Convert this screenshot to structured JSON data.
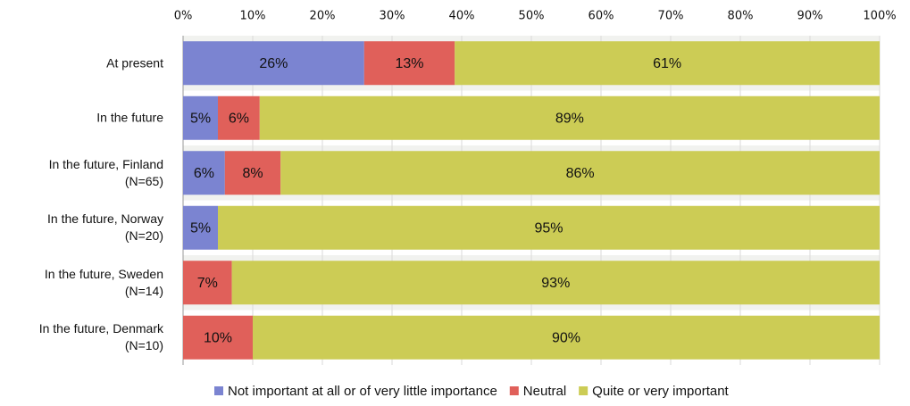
{
  "chart_data": {
    "type": "stacked-barh",
    "categories": [
      "At present",
      "In the future",
      "In the future, Finland\n(N=65)",
      "In the future, Norway\n(N=20)",
      "In the future, Sweden\n(N=14)",
      "In the future, Denmark\n(N=10)"
    ],
    "series": [
      {
        "name": "Not important at all or of very little importance",
        "color": "#7b84d1",
        "values": [
          26,
          5,
          6,
          5,
          null,
          null
        ],
        "value_labels": [
          "26%",
          "5%",
          "6%",
          "5%",
          null,
          null
        ]
      },
      {
        "name": "Neutral",
        "color": "#e0605a",
        "values": [
          13,
          6,
          8,
          null,
          7,
          10
        ],
        "value_labels": [
          "13%",
          "6%",
          "8%",
          null,
          "7%",
          "10%"
        ]
      },
      {
        "name": "Quite or very important",
        "color": "#cccc55",
        "values": [
          61,
          89,
          86,
          95,
          93,
          90
        ],
        "value_labels": [
          "61%",
          "89%",
          "86%",
          "95%",
          "93%",
          "90%"
        ]
      }
    ],
    "xlim": [
      0,
      100
    ],
    "xticks": [
      {
        "value": 0,
        "label": "0%"
      },
      {
        "value": 10,
        "label": "10%"
      },
      {
        "value": 20,
        "label": "20%"
      },
      {
        "value": 30,
        "label": "30%"
      },
      {
        "value": 40,
        "label": "40%"
      },
      {
        "value": 50,
        "label": "50%"
      },
      {
        "value": 60,
        "label": "60%"
      },
      {
        "value": 70,
        "label": "70%"
      },
      {
        "value": 80,
        "label": "80%"
      },
      {
        "value": 90,
        "label": "90%"
      },
      {
        "value": 100,
        "label": "100%"
      }
    ],
    "grid": true,
    "legend": "bottom"
  }
}
